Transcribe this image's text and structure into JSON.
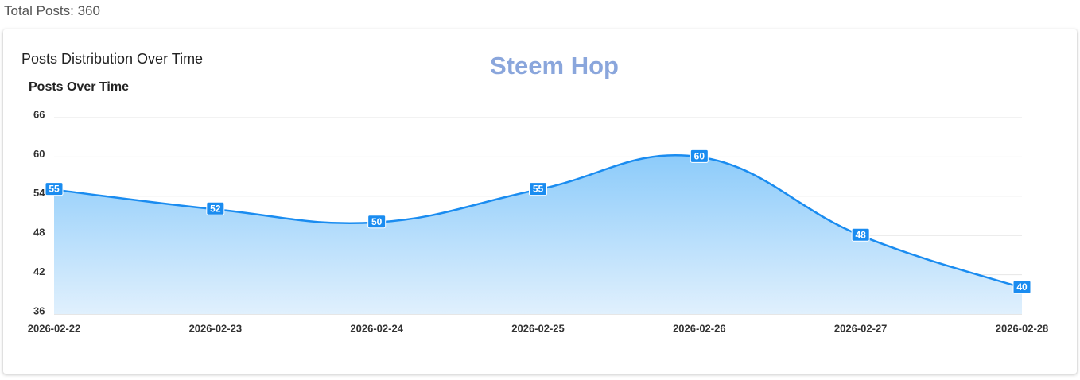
{
  "header": {
    "text": "Total Posts: 360"
  },
  "card": {
    "title": "Posts Distribution Over Time",
    "watermark": "Steem Hop"
  },
  "chart_data": {
    "type": "area",
    "title": "Posts Over Time",
    "categories": [
      "2026-02-22",
      "2026-02-23",
      "2026-02-24",
      "2026-02-25",
      "2026-02-26",
      "2026-02-27",
      "2026-02-28"
    ],
    "values": [
      55,
      52,
      50,
      55,
      60,
      48,
      40
    ],
    "color": "#1a8cf0",
    "ylim": [
      36,
      66
    ],
    "yticks": [
      36,
      42,
      48,
      54,
      60,
      66
    ],
    "grid": true
  }
}
